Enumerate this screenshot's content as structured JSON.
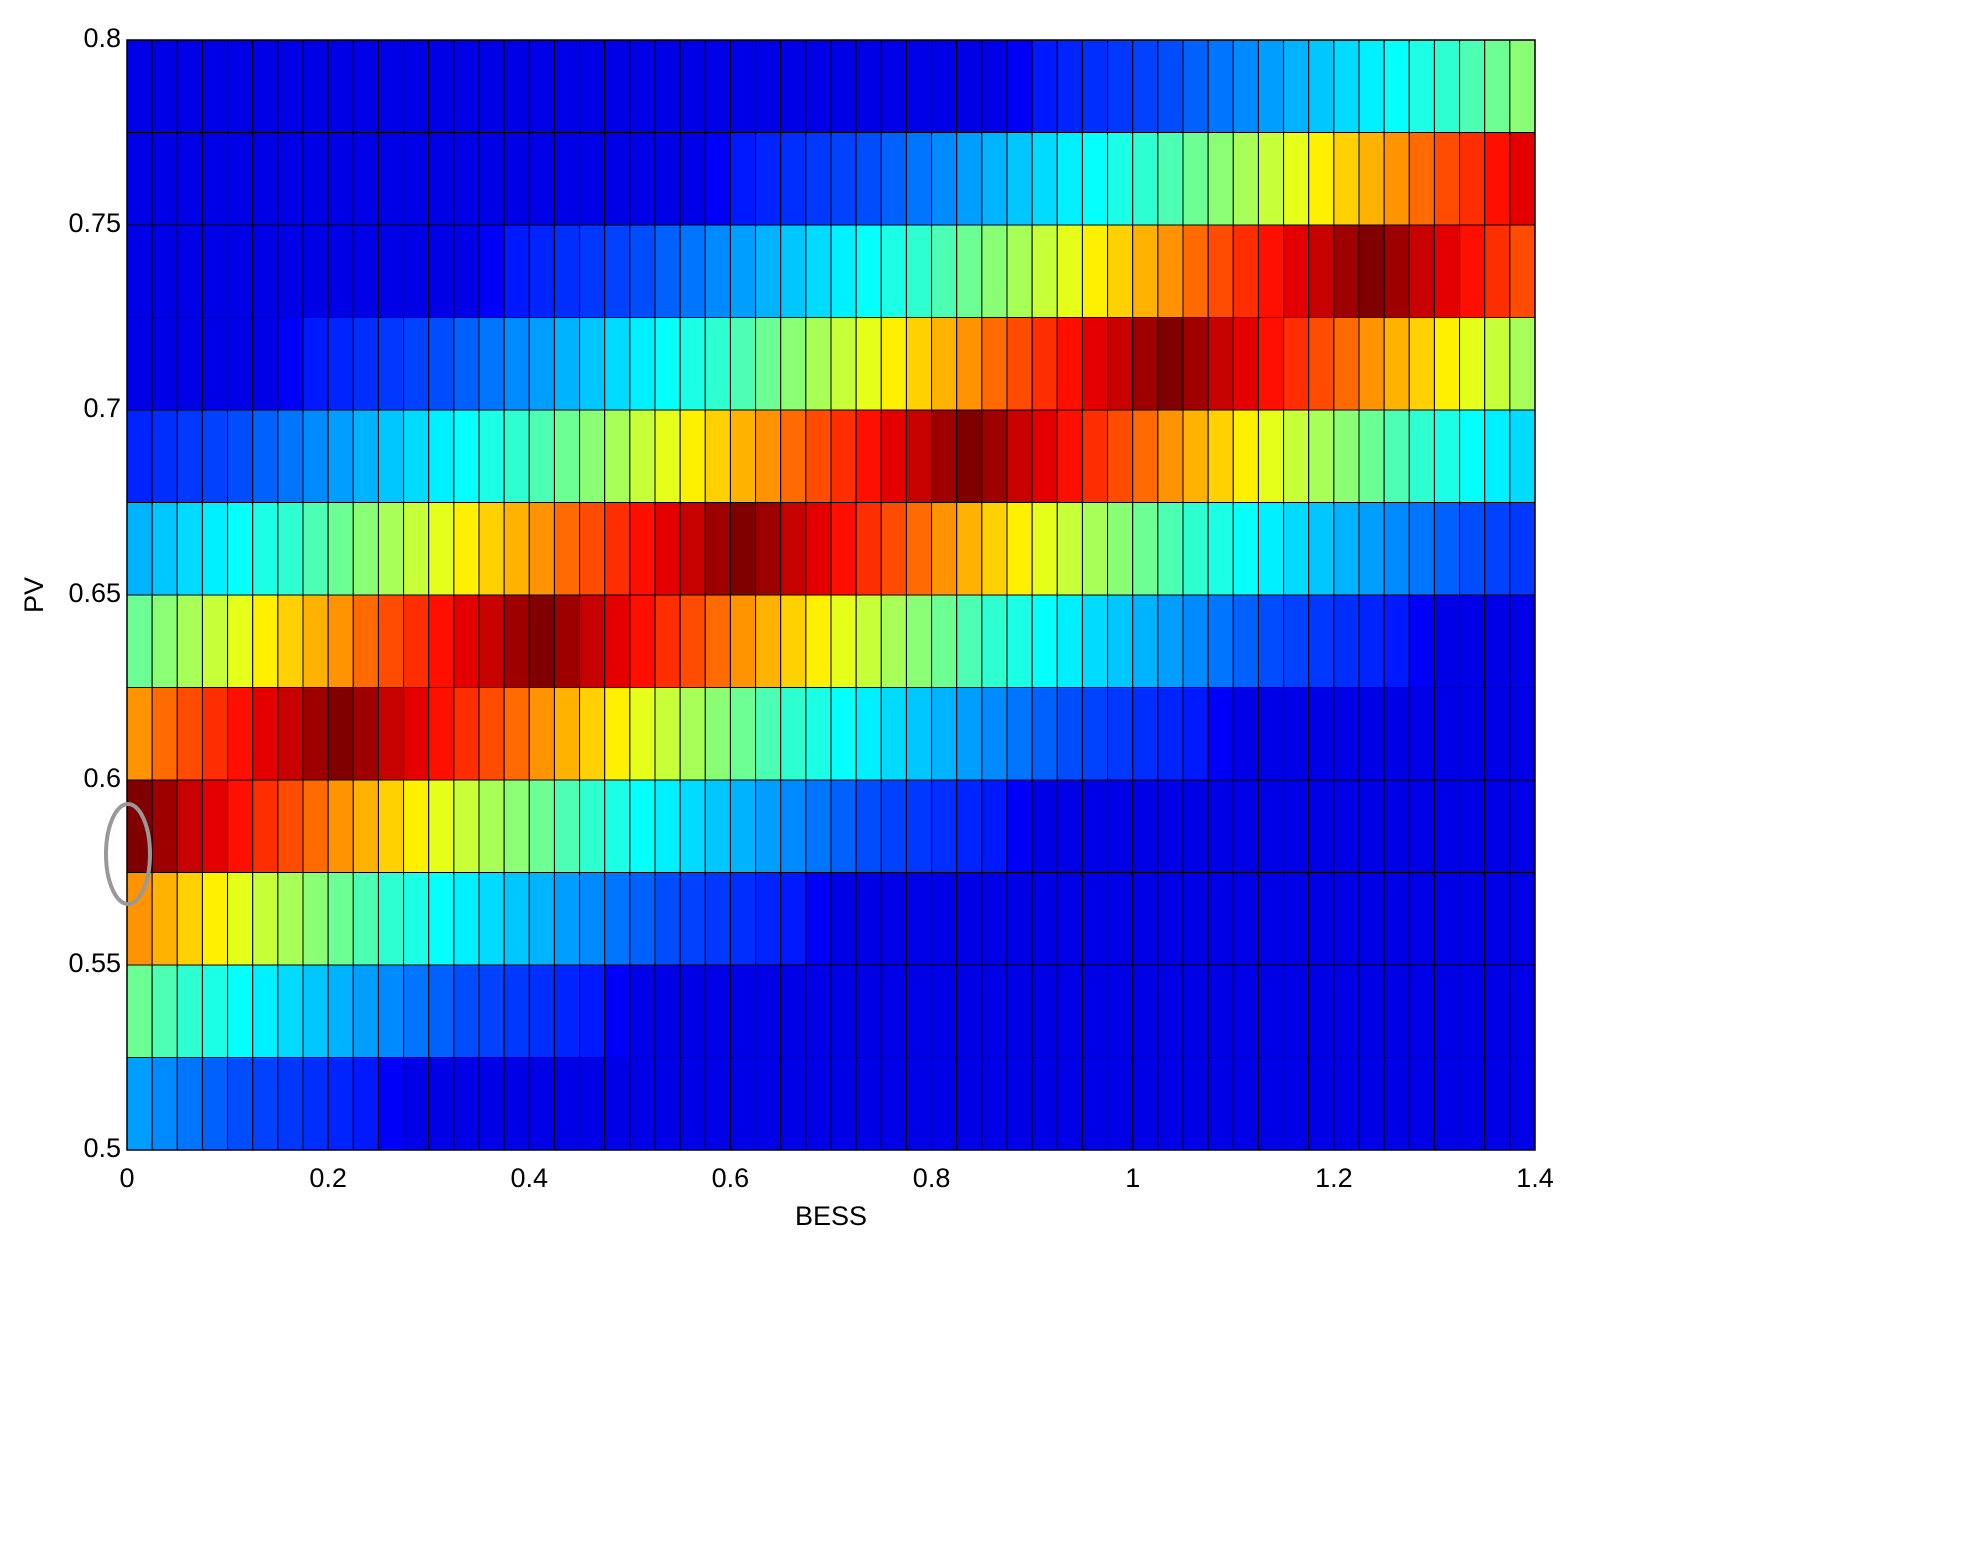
{
  "chart_data": {
    "type": "heatmap",
    "colormap": "jet",
    "xlabel": "BESS",
    "ylabel": "PV",
    "xlim": [
      0,
      1.4
    ],
    "ylim": [
      0.5,
      0.8
    ],
    "xticks": [
      0,
      0.2,
      0.4,
      0.6,
      0.8,
      1,
      1.2,
      1.4
    ],
    "yticks": [
      0.5,
      0.55,
      0.6,
      0.65,
      0.7,
      0.75,
      0.8
    ],
    "z": [
      [
        0.28,
        0.26,
        0.24,
        0.22,
        0.2,
        0.19,
        0.18,
        0.17,
        0.16,
        0.15,
        0.12,
        0.1,
        0.1,
        0.1,
        0.1,
        0.1,
        0.1,
        0.1,
        0.1,
        0.1,
        0.1,
        0.1,
        0.1,
        0.1,
        0.1,
        0.1,
        0.1,
        0.1,
        0.1,
        0.1,
        0.1,
        0.1,
        0.1,
        0.1,
        0.1,
        0.1,
        0.1,
        0.1,
        0.1,
        0.1,
        0.1,
        0.1,
        0.1,
        0.1,
        0.1,
        0.1,
        0.1,
        0.1,
        0.1,
        0.1,
        0.1,
        0.1,
        0.1,
        0.1,
        0.1,
        0.1
      ],
      [
        0.48,
        0.45,
        0.42,
        0.4,
        0.38,
        0.36,
        0.34,
        0.32,
        0.3,
        0.28,
        0.26,
        0.24,
        0.22,
        0.2,
        0.19,
        0.18,
        0.17,
        0.16,
        0.15,
        0.12,
        0.1,
        0.1,
        0.1,
        0.1,
        0.1,
        0.1,
        0.1,
        0.1,
        0.1,
        0.1,
        0.1,
        0.1,
        0.1,
        0.1,
        0.1,
        0.1,
        0.1,
        0.1,
        0.1,
        0.1,
        0.1,
        0.1,
        0.1,
        0.1,
        0.1,
        0.1,
        0.1,
        0.1,
        0.1,
        0.1,
        0.1,
        0.1,
        0.1,
        0.1,
        0.1,
        0.1
      ],
      [
        0.73,
        0.7,
        0.67,
        0.64,
        0.6,
        0.57,
        0.54,
        0.51,
        0.48,
        0.45,
        0.42,
        0.4,
        0.38,
        0.36,
        0.34,
        0.32,
        0.3,
        0.28,
        0.26,
        0.24,
        0.22,
        0.2,
        0.19,
        0.18,
        0.17,
        0.16,
        0.15,
        0.12,
        0.1,
        0.1,
        0.1,
        0.1,
        0.1,
        0.1,
        0.1,
        0.1,
        0.1,
        0.1,
        0.1,
        0.1,
        0.1,
        0.1,
        0.1,
        0.1,
        0.1,
        0.1,
        0.1,
        0.1,
        0.1,
        0.1,
        0.1,
        0.1,
        0.1,
        0.1,
        0.1,
        0.1
      ],
      [
        1.0,
        0.97,
        0.93,
        0.9,
        0.86,
        0.83,
        0.8,
        0.77,
        0.73,
        0.7,
        0.67,
        0.64,
        0.6,
        0.57,
        0.54,
        0.51,
        0.48,
        0.45,
        0.42,
        0.4,
        0.38,
        0.36,
        0.34,
        0.32,
        0.3,
        0.28,
        0.26,
        0.24,
        0.22,
        0.2,
        0.19,
        0.18,
        0.17,
        0.16,
        0.15,
        0.12,
        0.1,
        0.1,
        0.1,
        0.1,
        0.1,
        0.1,
        0.1,
        0.1,
        0.1,
        0.1,
        0.1,
        0.1,
        0.1,
        0.1,
        0.1,
        0.1,
        0.1,
        0.1,
        0.1,
        0.1
      ],
      [
        0.73,
        0.77,
        0.8,
        0.83,
        0.86,
        0.9,
        0.93,
        0.97,
        1.0,
        0.97,
        0.93,
        0.9,
        0.86,
        0.83,
        0.8,
        0.77,
        0.73,
        0.7,
        0.67,
        0.64,
        0.6,
        0.57,
        0.54,
        0.51,
        0.48,
        0.45,
        0.42,
        0.4,
        0.38,
        0.36,
        0.34,
        0.32,
        0.3,
        0.28,
        0.26,
        0.24,
        0.22,
        0.2,
        0.19,
        0.18,
        0.17,
        0.16,
        0.15,
        0.12,
        0.1,
        0.1,
        0.1,
        0.1,
        0.1,
        0.1,
        0.1,
        0.1,
        0.1,
        0.1,
        0.1,
        0.1
      ],
      [
        0.48,
        0.51,
        0.54,
        0.57,
        0.6,
        0.64,
        0.67,
        0.7,
        0.73,
        0.77,
        0.8,
        0.83,
        0.86,
        0.9,
        0.93,
        0.97,
        1.0,
        0.97,
        0.93,
        0.9,
        0.86,
        0.83,
        0.8,
        0.77,
        0.73,
        0.7,
        0.67,
        0.64,
        0.6,
        0.57,
        0.54,
        0.51,
        0.48,
        0.45,
        0.42,
        0.4,
        0.38,
        0.36,
        0.34,
        0.32,
        0.3,
        0.28,
        0.26,
        0.24,
        0.22,
        0.2,
        0.19,
        0.18,
        0.17,
        0.16,
        0.15,
        0.12,
        0.1,
        0.1,
        0.1,
        0.1
      ],
      [
        0.3,
        0.32,
        0.34,
        0.36,
        0.38,
        0.4,
        0.42,
        0.45,
        0.48,
        0.51,
        0.54,
        0.57,
        0.6,
        0.64,
        0.67,
        0.7,
        0.73,
        0.77,
        0.8,
        0.83,
        0.86,
        0.9,
        0.93,
        0.97,
        1.0,
        0.97,
        0.93,
        0.9,
        0.86,
        0.83,
        0.8,
        0.77,
        0.73,
        0.7,
        0.67,
        0.64,
        0.6,
        0.57,
        0.54,
        0.51,
        0.48,
        0.45,
        0.42,
        0.4,
        0.38,
        0.36,
        0.34,
        0.32,
        0.3,
        0.28,
        0.26,
        0.24,
        0.22,
        0.2,
        0.19,
        0.18
      ],
      [
        0.16,
        0.17,
        0.18,
        0.19,
        0.2,
        0.22,
        0.24,
        0.26,
        0.28,
        0.3,
        0.32,
        0.34,
        0.36,
        0.38,
        0.4,
        0.42,
        0.45,
        0.48,
        0.51,
        0.54,
        0.57,
        0.6,
        0.64,
        0.67,
        0.7,
        0.73,
        0.77,
        0.8,
        0.83,
        0.86,
        0.9,
        0.93,
        0.97,
        1.0,
        0.97,
        0.93,
        0.9,
        0.86,
        0.83,
        0.8,
        0.77,
        0.73,
        0.7,
        0.67,
        0.64,
        0.6,
        0.57,
        0.54,
        0.51,
        0.48,
        0.45,
        0.42,
        0.4,
        0.38,
        0.36,
        0.34
      ],
      [
        0.1,
        0.1,
        0.1,
        0.1,
        0.1,
        0.1,
        0.12,
        0.15,
        0.16,
        0.17,
        0.18,
        0.19,
        0.2,
        0.22,
        0.24,
        0.26,
        0.28,
        0.3,
        0.32,
        0.34,
        0.36,
        0.38,
        0.4,
        0.42,
        0.45,
        0.48,
        0.51,
        0.54,
        0.57,
        0.6,
        0.64,
        0.67,
        0.7,
        0.73,
        0.77,
        0.8,
        0.83,
        0.86,
        0.9,
        0.93,
        0.97,
        1.0,
        0.97,
        0.93,
        0.9,
        0.86,
        0.83,
        0.8,
        0.77,
        0.73,
        0.7,
        0.67,
        0.64,
        0.6,
        0.57,
        0.54
      ],
      [
        0.1,
        0.1,
        0.1,
        0.1,
        0.1,
        0.1,
        0.1,
        0.1,
        0.1,
        0.1,
        0.1,
        0.1,
        0.1,
        0.1,
        0.12,
        0.15,
        0.16,
        0.17,
        0.18,
        0.19,
        0.2,
        0.22,
        0.24,
        0.26,
        0.28,
        0.3,
        0.32,
        0.34,
        0.36,
        0.38,
        0.4,
        0.42,
        0.45,
        0.48,
        0.51,
        0.54,
        0.57,
        0.6,
        0.64,
        0.67,
        0.7,
        0.73,
        0.77,
        0.8,
        0.83,
        0.86,
        0.9,
        0.93,
        0.97,
        1.0,
        0.97,
        0.93,
        0.9,
        0.86,
        0.83,
        0.8
      ],
      [
        0.1,
        0.1,
        0.1,
        0.1,
        0.1,
        0.1,
        0.1,
        0.1,
        0.1,
        0.1,
        0.1,
        0.1,
        0.1,
        0.1,
        0.1,
        0.1,
        0.1,
        0.1,
        0.1,
        0.1,
        0.1,
        0.1,
        0.1,
        0.12,
        0.15,
        0.16,
        0.17,
        0.18,
        0.19,
        0.2,
        0.22,
        0.24,
        0.26,
        0.28,
        0.3,
        0.32,
        0.34,
        0.36,
        0.38,
        0.4,
        0.42,
        0.45,
        0.48,
        0.51,
        0.54,
        0.57,
        0.6,
        0.64,
        0.67,
        0.7,
        0.73,
        0.77,
        0.8,
        0.83,
        0.86,
        0.9
      ],
      [
        0.1,
        0.1,
        0.1,
        0.1,
        0.1,
        0.1,
        0.1,
        0.1,
        0.1,
        0.1,
        0.1,
        0.1,
        0.1,
        0.1,
        0.1,
        0.1,
        0.1,
        0.1,
        0.1,
        0.1,
        0.1,
        0.1,
        0.1,
        0.1,
        0.1,
        0.1,
        0.1,
        0.1,
        0.1,
        0.1,
        0.1,
        0.1,
        0.1,
        0.1,
        0.1,
        0.12,
        0.15,
        0.16,
        0.17,
        0.18,
        0.19,
        0.2,
        0.22,
        0.24,
        0.26,
        0.28,
        0.3,
        0.32,
        0.34,
        0.36,
        0.38,
        0.4,
        0.42,
        0.45,
        0.48,
        0.51
      ]
    ]
  }
}
